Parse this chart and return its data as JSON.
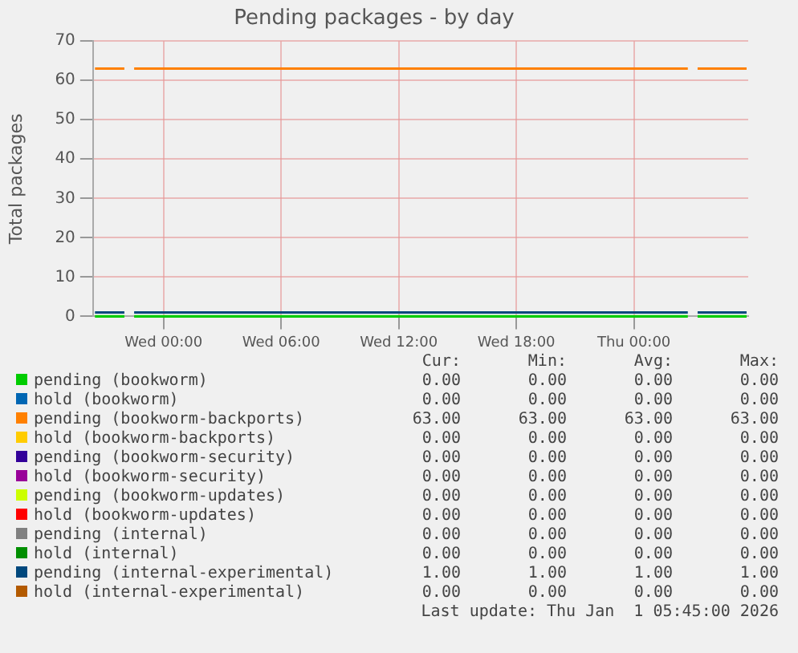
{
  "chart_data": {
    "type": "line",
    "title": "Pending packages - by day",
    "ylabel": "Total packages",
    "x": [
      "2025-12-30T20:30",
      "2025-12-30T22:00",
      "2025-12-30T22:15",
      "2025-12-30T22:30",
      "2026-01-01T02:45",
      "2026-01-01T03:00",
      "2026-01-01T03:15",
      "2026-01-01T05:45"
    ],
    "xlim": [
      "2025-12-30T20:24",
      "2026-01-01T05:50"
    ],
    "xticks": [
      {
        "value": "2025-12-31T00:00",
        "label": "Wed 00:00"
      },
      {
        "value": "2025-12-31T06:00",
        "label": "Wed 06:00"
      },
      {
        "value": "2025-12-31T12:00",
        "label": "Wed 12:00"
      },
      {
        "value": "2025-12-31T18:00",
        "label": "Wed 18:00"
      },
      {
        "value": "2026-01-01T00:00",
        "label": "Thu 00:00"
      }
    ],
    "ylim": [
      0,
      70
    ],
    "yticks": [
      0,
      10,
      20,
      30,
      40,
      50,
      60,
      70
    ],
    "grid": true,
    "legend": "bottom",
    "marker": "none",
    "line_style": "solid",
    "series": [
      {
        "name": "pending (bookworm)",
        "color": "#00cc00",
        "values": [
          0,
          0,
          null,
          0,
          0,
          null,
          0,
          0
        ]
      },
      {
        "name": "hold (bookworm)",
        "color": "#0066b3",
        "values": [
          null,
          null,
          null,
          null,
          null,
          null,
          null,
          null
        ]
      },
      {
        "name": "pending (bookworm-backports)",
        "color": "#ff8000",
        "values": [
          63,
          63,
          null,
          63,
          63,
          null,
          63,
          63
        ]
      },
      {
        "name": "hold (bookworm-backports)",
        "color": "#ffcc00",
        "values": [
          null,
          null,
          null,
          null,
          null,
          null,
          null,
          null
        ]
      },
      {
        "name": "pending (bookworm-security)",
        "color": "#330099",
        "values": [
          null,
          null,
          null,
          null,
          null,
          null,
          null,
          null
        ]
      },
      {
        "name": "hold (bookworm-security)",
        "color": "#990099",
        "values": [
          null,
          null,
          null,
          null,
          null,
          null,
          null,
          null
        ]
      },
      {
        "name": "pending (bookworm-updates)",
        "color": "#ccff00",
        "values": [
          null,
          null,
          null,
          null,
          null,
          null,
          null,
          null
        ]
      },
      {
        "name": "hold (bookworm-updates)",
        "color": "#ff0000",
        "values": [
          null,
          null,
          null,
          null,
          null,
          null,
          null,
          null
        ]
      },
      {
        "name": "pending (internal)",
        "color": "#808080",
        "values": [
          null,
          null,
          null,
          null,
          null,
          null,
          null,
          null
        ]
      },
      {
        "name": "hold (internal)",
        "color": "#008f00",
        "values": [
          null,
          null,
          null,
          null,
          null,
          null,
          null,
          null
        ]
      },
      {
        "name": "pending (internal-experimental)",
        "color": "#00487d",
        "values": [
          1,
          1,
          null,
          1,
          1,
          null,
          1,
          1
        ]
      },
      {
        "name": "hold (internal-experimental)",
        "color": "#b35a00",
        "values": [
          null,
          null,
          null,
          null,
          null,
          null,
          null,
          null
        ]
      }
    ],
    "annotations": [
      "Cur:",
      "Min:",
      "Avg:",
      "Max:",
      "0.00",
      "0.00",
      "0.00",
      "0.00",
      "0.00",
      "0.00",
      "0.00",
      "0.00",
      "63.00",
      "63.00",
      "63.00",
      "63.00",
      "0.00",
      "0.00",
      "0.00",
      "0.00",
      "0.00",
      "0.00",
      "0.00",
      "0.00",
      "0.00",
      "0.00",
      "0.00",
      "0.00",
      "0.00",
      "0.00",
      "0.00",
      "0.00",
      "0.00",
      "0.00",
      "0.00",
      "0.00",
      "0.00",
      "0.00",
      "0.00",
      "0.00",
      "0.00",
      "0.00",
      "0.00",
      "0.00",
      "1.00",
      "1.00",
      "1.00",
      "1.00",
      "0.00",
      "0.00",
      "0.00",
      "0.00",
      "Last update: Thu Jan  1 05:45:00 2026"
    ]
  }
}
